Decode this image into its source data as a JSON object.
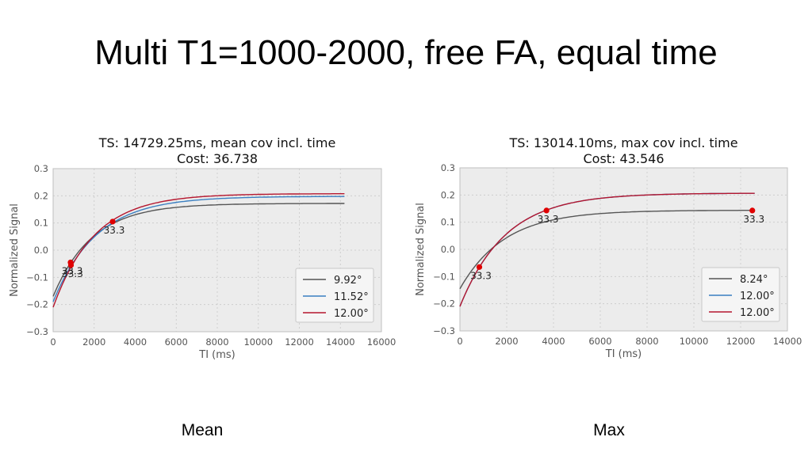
{
  "slide": {
    "title": "Multi T1=1000-2000, free FA, equal time",
    "captions": [
      "Mean",
      "Max"
    ]
  },
  "chart_data": [
    {
      "type": "line",
      "title": "TS: 14729.25ms, mean cov incl. time",
      "subtitle": "Cost: 36.738",
      "xlabel": "TI (ms)",
      "ylabel": "Normalized Signal",
      "xlim": [
        0,
        16000
      ],
      "ylim": [
        -0.3,
        0.3
      ],
      "xticks": [
        0,
        2000,
        4000,
        6000,
        8000,
        10000,
        12000,
        14000,
        16000
      ],
      "yticks": [
        -0.3,
        -0.2,
        -0.1,
        0.0,
        0.1,
        0.2,
        0.3
      ],
      "grid": true,
      "legend_position": "lower-right",
      "x_end": 14200,
      "series": [
        {
          "name": "9.92°",
          "color": "#555555",
          "s0": -0.17,
          "plateau": 0.172,
          "tau": 1900
        },
        {
          "name": "11.52°",
          "color": "#3a7fc1",
          "s0": -0.19,
          "plateau": 0.198,
          "tau": 2100
        },
        {
          "name": "12.00°",
          "color": "#b5162e",
          "s0": -0.21,
          "plateau": 0.208,
          "tau": 2000
        }
      ],
      "markers": [
        {
          "x": 850,
          "y": -0.045,
          "label": "33.3"
        },
        {
          "x": 870,
          "y": -0.055,
          "label": "33.3"
        },
        {
          "x": 2900,
          "y": 0.105,
          "label": "33.3"
        }
      ]
    },
    {
      "type": "line",
      "title": "TS: 13014.10ms, max cov incl. time",
      "subtitle": "Cost: 43.546",
      "xlabel": "TI (ms)",
      "ylabel": "Normalized Signal",
      "xlim": [
        0,
        14000
      ],
      "ylim": [
        -0.3,
        0.3
      ],
      "xticks": [
        0,
        2000,
        4000,
        6000,
        8000,
        10000,
        12000,
        14000
      ],
      "yticks": [
        -0.3,
        -0.2,
        -0.1,
        0.0,
        0.1,
        0.2,
        0.3
      ],
      "grid": true,
      "legend_position": "lower-right",
      "x_end": 12600,
      "series": [
        {
          "name": "8.24°",
          "color": "#555555",
          "s0": -0.145,
          "plateau": 0.144,
          "tau": 1900
        },
        {
          "name": "12.00°",
          "color": "#3a7fc1",
          "s0": -0.21,
          "plateau": 0.207,
          "tau": 1950
        },
        {
          "name": "12.00°",
          "color": "#b5162e",
          "s0": -0.21,
          "plateau": 0.207,
          "tau": 1950
        }
      ],
      "markers": [
        {
          "x": 830,
          "y": -0.065,
          "label": "33.3"
        },
        {
          "x": 3700,
          "y": 0.143,
          "label": "33.3"
        },
        {
          "x": 12500,
          "y": 0.143,
          "label": "33.3"
        }
      ]
    }
  ]
}
